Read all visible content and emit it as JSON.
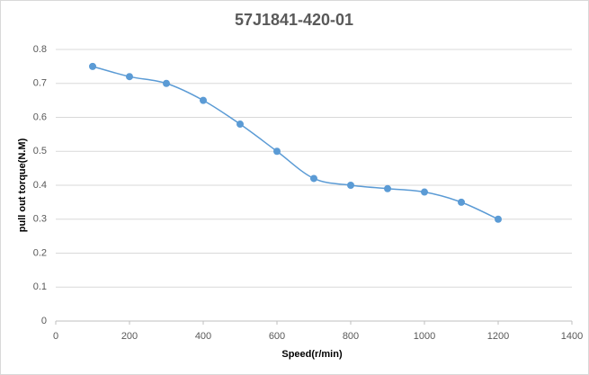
{
  "chart_data": {
    "type": "line",
    "title": "57J1841-420-01",
    "x_label": "Speed(r/min)",
    "y_label": "pull out torque(N.M)",
    "x": [
      100,
      200,
      300,
      400,
      500,
      600,
      700,
      800,
      900,
      1000,
      1100,
      1200
    ],
    "values": [
      0.75,
      0.72,
      0.7,
      0.65,
      0.58,
      0.5,
      0.42,
      0.4,
      0.39,
      0.38,
      0.35,
      0.3
    ],
    "color": "#5b9bd5",
    "smooth": true,
    "markers": true,
    "xlim": [
      0,
      1400
    ],
    "xticks": [
      0,
      200,
      400,
      600,
      800,
      1000,
      1200,
      1400
    ],
    "ylim": [
      0,
      0.8
    ],
    "yticks": [
      0,
      0.1,
      0.2,
      0.3,
      0.4,
      0.5,
      0.6,
      0.7,
      0.8
    ],
    "grid": true
  }
}
